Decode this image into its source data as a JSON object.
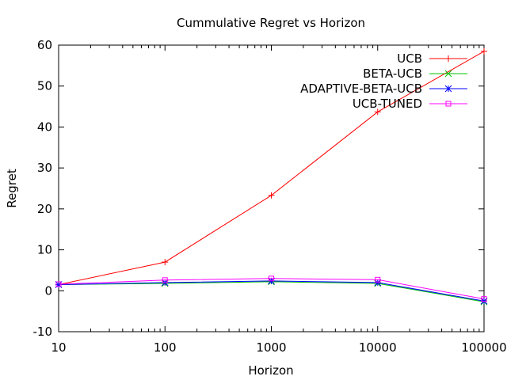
{
  "chart_data": {
    "type": "line",
    "title": "Cummulative Regret vs Horizon",
    "xlabel": "Horizon",
    "ylabel": "Regret",
    "x_scale": "log",
    "x": [
      10,
      100,
      1000,
      10000,
      100000
    ],
    "x_tick_labels": [
      "10",
      "100",
      "1000",
      "10000",
      "100000"
    ],
    "xlim": [
      10,
      100000
    ],
    "y_ticks": [
      -10,
      0,
      10,
      20,
      30,
      40,
      50,
      60
    ],
    "y_tick_labels": [
      "-10",
      "0",
      "10",
      "20",
      "30",
      "40",
      "50",
      "60"
    ],
    "ylim": [
      -10,
      60
    ],
    "grid": false,
    "legend_position": "top-right",
    "series": [
      {
        "name": "UCB",
        "color": "#ff0000",
        "marker": "plus",
        "values": [
          1.5,
          7.0,
          23.3,
          43.7,
          58.5
        ]
      },
      {
        "name": "BETA-UCB",
        "color": "#00c000",
        "marker": "cross",
        "values": [
          1.5,
          1.8,
          2.2,
          1.8,
          -2.7
        ]
      },
      {
        "name": "ADAPTIVE-BETA-UCB",
        "color": "#0000ff",
        "marker": "star",
        "values": [
          1.5,
          2.0,
          2.4,
          2.0,
          -2.5
        ]
      },
      {
        "name": "UCB-TUNED",
        "color": "#ff00ff",
        "marker": "square",
        "values": [
          1.6,
          2.6,
          3.0,
          2.7,
          -2.0
        ]
      }
    ]
  }
}
